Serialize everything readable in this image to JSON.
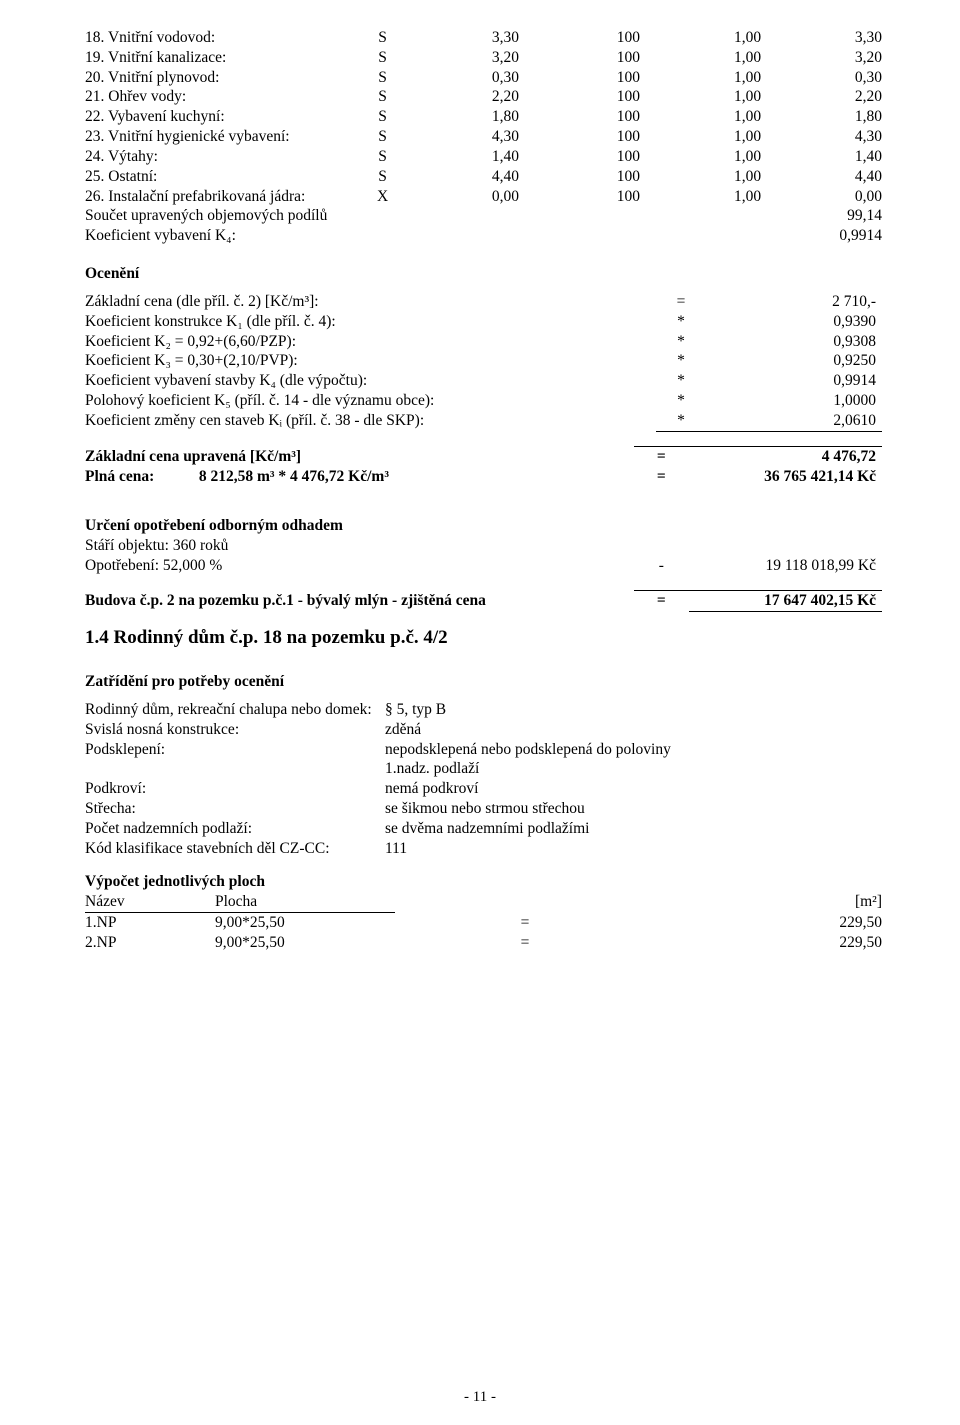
{
  "equip_rows": [
    {
      "no": "18.",
      "label": "Vnitřní vodovod:",
      "a": "S",
      "b": "3,30",
      "c": "100",
      "d": "1,00",
      "e": "3,30"
    },
    {
      "no": "19.",
      "label": "Vnitřní kanalizace:",
      "a": "S",
      "b": "3,20",
      "c": "100",
      "d": "1,00",
      "e": "3,20"
    },
    {
      "no": "20.",
      "label": "Vnitřní plynovod:",
      "a": "S",
      "b": "0,30",
      "c": "100",
      "d": "1,00",
      "e": "0,30"
    },
    {
      "no": "21.",
      "label": "Ohřev vody:",
      "a": "S",
      "b": "2,20",
      "c": "100",
      "d": "1,00",
      "e": "2,20"
    },
    {
      "no": "22.",
      "label": "Vybavení kuchyní:",
      "a": "S",
      "b": "1,80",
      "c": "100",
      "d": "1,00",
      "e": "1,80"
    },
    {
      "no": "23.",
      "label": "Vnitřní hygienické vybavení:",
      "a": "S",
      "b": "4,30",
      "c": "100",
      "d": "1,00",
      "e": "4,30"
    },
    {
      "no": "24.",
      "label": "Výtahy:",
      "a": "S",
      "b": "1,40",
      "c": "100",
      "d": "1,00",
      "e": "1,40"
    },
    {
      "no": "25.",
      "label": "Ostatní:",
      "a": "S",
      "b": "4,40",
      "c": "100",
      "d": "1,00",
      "e": "4,40"
    },
    {
      "no": "26.",
      "label": "Instalační prefabrikovaná jádra:",
      "a": "X",
      "b": "0,00",
      "c": "100",
      "d": "1,00",
      "e": "0,00"
    }
  ],
  "sum1_label": "Součet upravených objemových podílů",
  "sum1_value": "99,14",
  "sum2_label": "Koeficient vybavení K₄:",
  "sum2_value": "0,9914",
  "oceneni_heading": "Ocenění",
  "oc_rows": [
    {
      "label": "Základní cena (dle příl. č. 2) [Kč/m³]:",
      "op": "=",
      "val": "2 710,-",
      "rule": false
    },
    {
      "label": "Koeficient konstrukce K₁ (dle příl. č. 4):",
      "op": "*",
      "val": "0,9390",
      "rule": false
    },
    {
      "label": "Koeficient K₂ = 0,92+(6,60/PZP):",
      "op": "*",
      "val": "0,9308",
      "rule": false
    },
    {
      "label": "Koeficient K₃ = 0,30+(2,10/PVP):",
      "op": "*",
      "val": "0,9250",
      "rule": false
    },
    {
      "label": "Koeficient vybavení stavby K₄ (dle výpočtu):",
      "op": "*",
      "val": "0,9914",
      "rule": false
    },
    {
      "label": "Polohový koeficient K₅ (příl. č. 14 - dle významu obce):",
      "op": "*",
      "val": "1,0000",
      "rule": false
    },
    {
      "label": "Koeficient změny cen staveb Kᵢ (příl. č. 38 - dle SKP):",
      "op": "*",
      "val": "2,0610",
      "rule": true
    }
  ],
  "zcu_label": "Základní cena upravená [Kč/m³]",
  "zcu_op": "=",
  "zcu_val": "4 476,72",
  "plna_lbl_a": "Plná cena:",
  "plna_lbl_b": "8 212,58 m³ * 4 476,72 Kč/m³",
  "plna_op": "=",
  "plna_val": "36 765 421,14 Kč",
  "wear_heading": "Určení opotřebení odborným odhadem",
  "wear_age": "Stáří objektu: 360 roků",
  "wear_pct": "Opotřebení: 52,000 %",
  "wear_op": "-",
  "wear_val": "19 118 018,99 Kč",
  "final_label": "Budova č.p. 2 na pozemku p.č.1 - bývalý mlýn - zjištěná cena",
  "final_op": "=",
  "final_val": "17 647 402,15 Kč",
  "h1_4": "1.4 Rodinný dům č.p. 18 na pozemku p.č. 4/2",
  "class_heading": "Zatřídění pro potřeby ocenění",
  "class_rows": [
    {
      "l": "Rodinný dům, rekreační chalupa nebo domek:",
      "v": "§ 5, typ B"
    },
    {
      "l": "Svislá nosná konstrukce:",
      "v": "zděná"
    },
    {
      "l": "Podsklepení:",
      "v": "nepodsklepená nebo podsklepená do poloviny"
    },
    {
      "l": "",
      "v": "1.nadz. podlaží"
    },
    {
      "l": "Podkroví:",
      "v": "nemá podkroví"
    },
    {
      "l": "Střecha:",
      "v": "se šikmou nebo strmou střechou"
    },
    {
      "l": "Počet nadzemních podlaží:",
      "v": "se dvěma nadzemními podlažími"
    },
    {
      "l": "Kód klasifikace stavebních děl CZ-CC:",
      "v": "111"
    }
  ],
  "areas_heading": "Výpočet jednotlivých ploch",
  "areas_header": {
    "a": "Název",
    "b": "Plocha",
    "c": "[m²]"
  },
  "areas_rows": [
    {
      "name": "1.NP",
      "calc": "9,00*25,50",
      "op": "=",
      "val": "229,50"
    },
    {
      "name": "2.NP",
      "calc": "9,00*25,50",
      "op": "=",
      "val": "229,50"
    }
  ],
  "page_num": "- 11 -"
}
